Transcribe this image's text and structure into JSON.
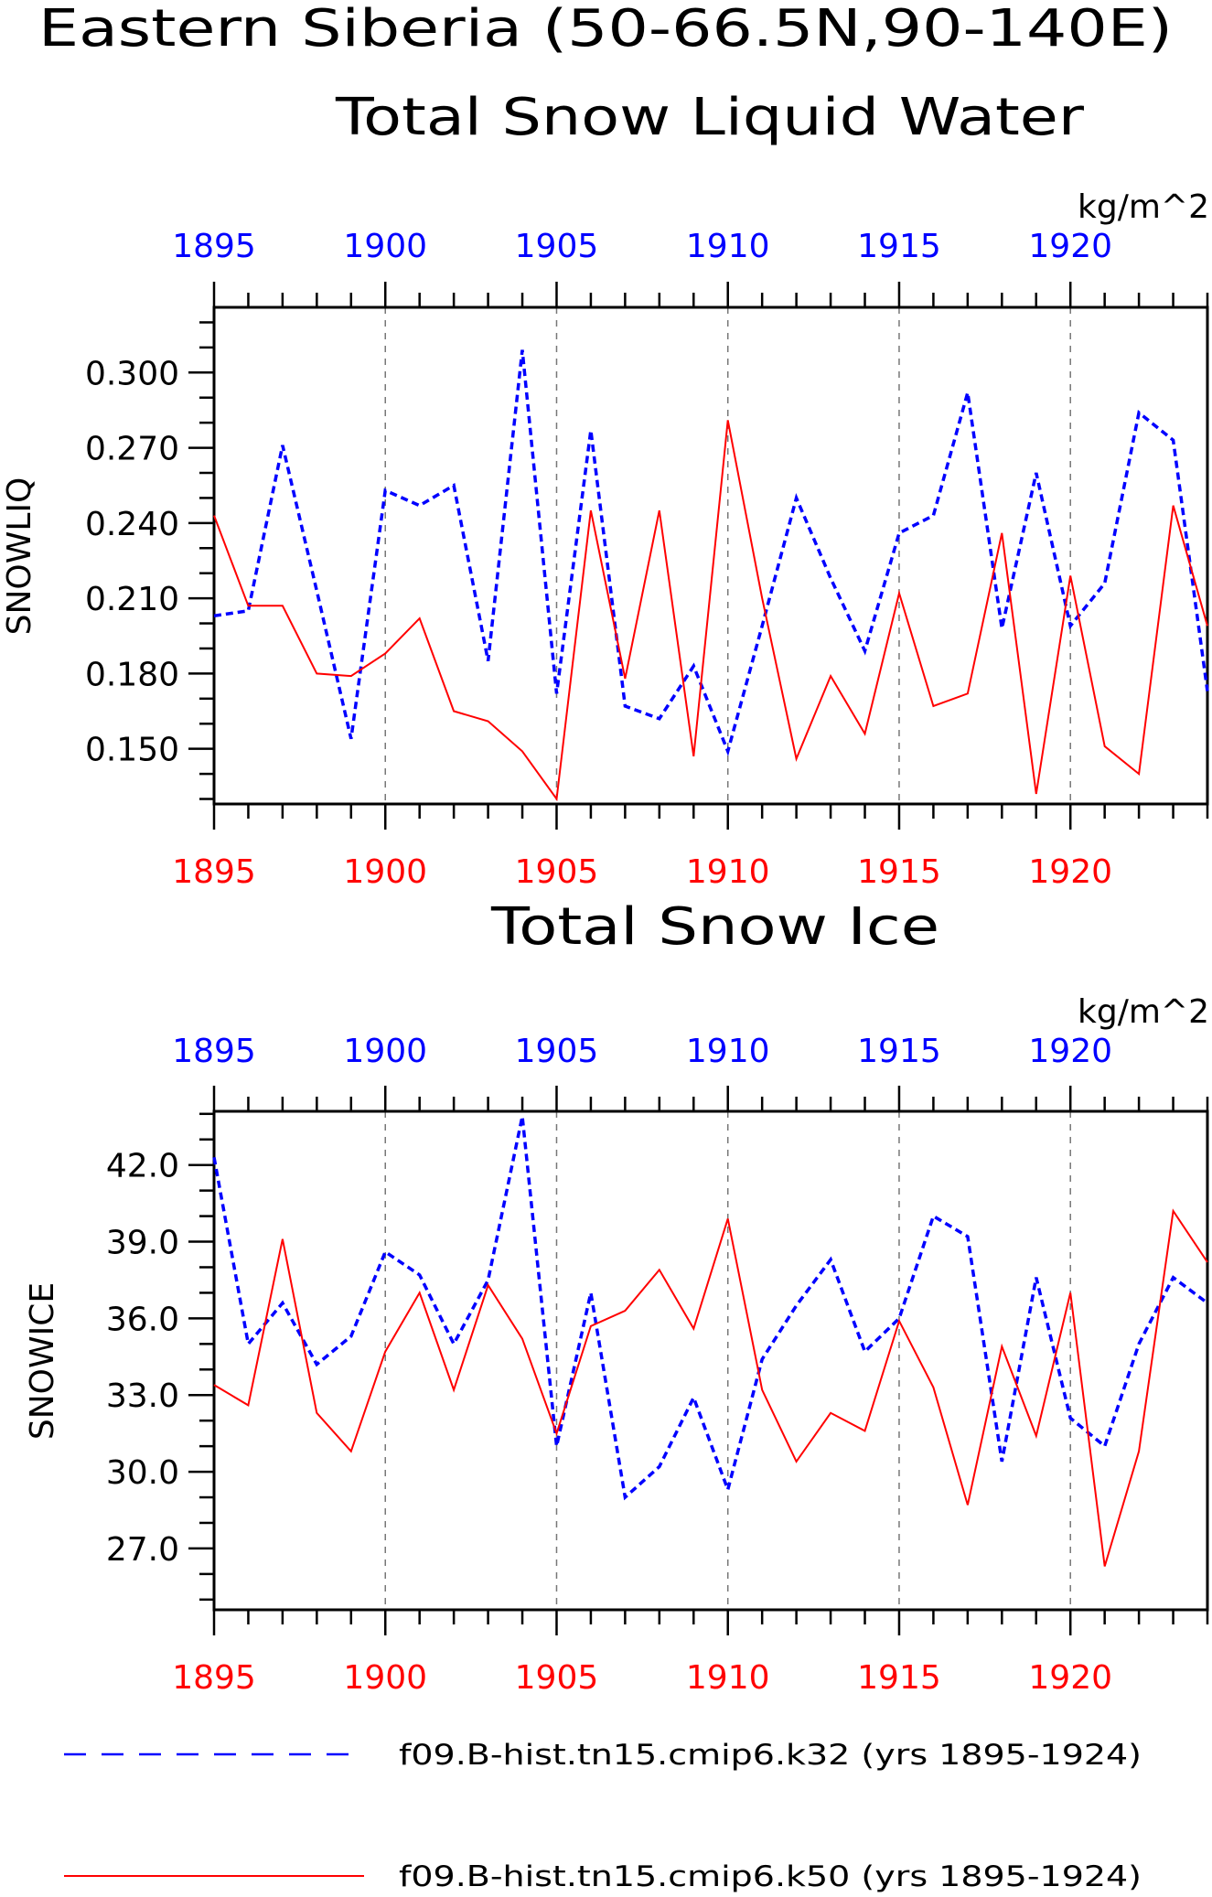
{
  "figure": {
    "title_line1": "Eastern Siberia (50-66.5N,90-140E)",
    "title_line2": "Total Snow Liquid Water"
  },
  "colors": {
    "run_k32": "#0000ff",
    "run_k50": "#ff0000",
    "axis": "#000000",
    "grid": "#777777"
  },
  "legend": {
    "k32": {
      "label": "f09.B-hist.tn15.cmip6.k32 (yrs 1895-1924)",
      "style": "dashed",
      "color": "#0000ff"
    },
    "k50": {
      "label": "f09.B-hist.tn15.cmip6.k50 (yrs 1895-1924)",
      "style": "solid",
      "color": "#ff0000"
    }
  },
  "chart_data": [
    {
      "type": "line",
      "title": "",
      "units": "kg/m^2",
      "ylabel": "SNOWLIQ",
      "xlim": [
        1895,
        1924
      ],
      "ylim": [
        0.128,
        0.326
      ],
      "yticks": [
        "0.150",
        "0.180",
        "0.210",
        "0.240",
        "0.270",
        "0.300"
      ],
      "xticks": [
        "1895",
        "1900",
        "1905",
        "1910",
        "1915",
        "1920"
      ],
      "grid_x": [
        1900,
        1905,
        1910,
        1915,
        1920
      ],
      "x": [
        1895,
        1896,
        1897,
        1898,
        1899,
        1900,
        1901,
        1902,
        1903,
        1904,
        1905,
        1906,
        1907,
        1908,
        1909,
        1910,
        1911,
        1912,
        1913,
        1914,
        1915,
        1916,
        1917,
        1918,
        1919,
        1920,
        1921,
        1922,
        1923,
        1924
      ],
      "series": [
        {
          "name": "f09.B-hist.tn15.cmip6.k32 (yrs 1895-1924)",
          "style": "dashed",
          "values": [
            0.203,
            0.205,
            0.271,
            0.213,
            0.154,
            0.253,
            0.247,
            0.255,
            0.185,
            0.309,
            0.172,
            0.277,
            0.167,
            0.162,
            0.183,
            0.149,
            0.199,
            0.25,
            0.218,
            0.189,
            0.236,
            0.243,
            0.292,
            0.198,
            0.26,
            0.199,
            0.216,
            0.284,
            0.273,
            0.173
          ]
        },
        {
          "name": "f09.B-hist.tn15.cmip6.k50 (yrs 1895-1924)",
          "style": "solid",
          "values": [
            0.243,
            0.207,
            0.207,
            0.18,
            0.179,
            0.188,
            0.202,
            0.165,
            0.161,
            0.149,
            0.13,
            0.245,
            0.178,
            0.245,
            0.147,
            0.281,
            0.21,
            0.146,
            0.179,
            0.156,
            0.212,
            0.167,
            0.172,
            0.236,
            0.132,
            0.219,
            0.151,
            0.14,
            0.247,
            0.199
          ]
        }
      ]
    },
    {
      "type": "line",
      "title": "Total Snow Ice",
      "units": "kg/m^2",
      "ylabel": "SNOWICE",
      "xlim": [
        1895,
        1924
      ],
      "ylim": [
        24.6,
        44.1
      ],
      "yticks": [
        "27.0",
        "30.0",
        "33.0",
        "36.0",
        "39.0",
        "42.0"
      ],
      "xticks": [
        "1895",
        "1900",
        "1905",
        "1910",
        "1915",
        "1920"
      ],
      "grid_x": [
        1900,
        1905,
        1910,
        1915,
        1920
      ],
      "x": [
        1895,
        1896,
        1897,
        1898,
        1899,
        1900,
        1901,
        1902,
        1903,
        1904,
        1905,
        1906,
        1907,
        1908,
        1909,
        1910,
        1911,
        1912,
        1913,
        1914,
        1915,
        1916,
        1917,
        1918,
        1919,
        1920,
        1921,
        1922,
        1923,
        1924
      ],
      "series": [
        {
          "name": "f09.B-hist.tn15.cmip6.k32 (yrs 1895-1924)",
          "style": "dashed",
          "values": [
            42.3,
            35.0,
            36.6,
            34.2,
            35.3,
            38.6,
            37.7,
            35.0,
            37.5,
            43.9,
            31.0,
            37.0,
            29.0,
            30.2,
            32.9,
            29.3,
            34.4,
            36.5,
            38.3,
            34.7,
            36.0,
            40.0,
            39.2,
            30.4,
            37.6,
            32.1,
            31.0,
            35.0,
            37.6,
            36.6
          ]
        },
        {
          "name": "f09.B-hist.tn15.cmip6.k50 (yrs 1895-1924)",
          "style": "solid",
          "values": [
            33.4,
            32.6,
            39.1,
            32.3,
            30.8,
            34.7,
            37.0,
            33.2,
            37.3,
            35.2,
            31.5,
            35.7,
            36.3,
            37.9,
            35.6,
            39.9,
            33.2,
            30.4,
            32.3,
            31.6,
            35.9,
            33.3,
            28.7,
            34.9,
            31.4,
            37.0,
            26.3,
            30.8,
            40.2,
            38.2
          ]
        }
      ]
    }
  ]
}
